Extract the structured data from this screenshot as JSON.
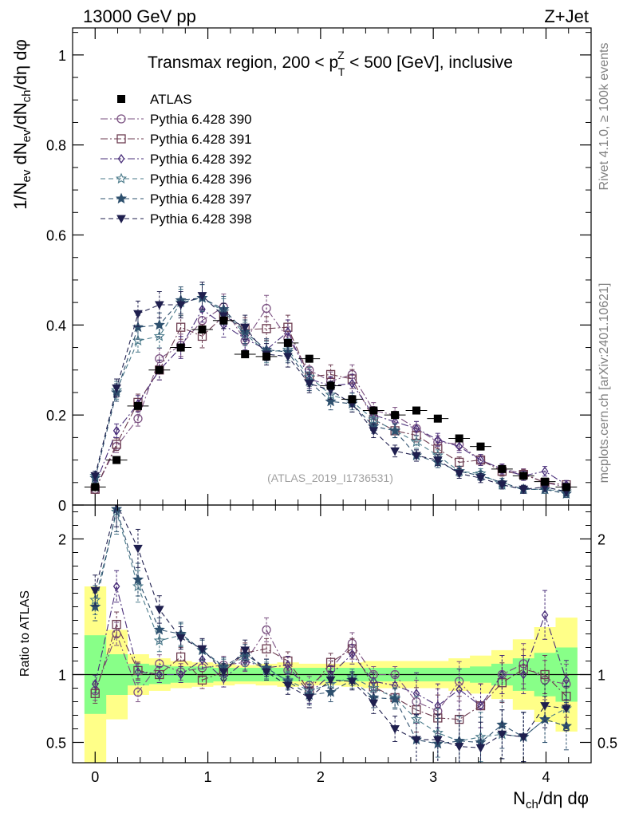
{
  "header": {
    "left": "13000 GeV pp",
    "right": "Z+Jet"
  },
  "side_text": {
    "rivet": "Rivet 4.1.0, ≥ 100k events",
    "mcplots": "mcplots.cern.ch [arXiv:2401.10621]"
  },
  "chart_data": [
    {
      "type": "scatter",
      "panel": "main",
      "title": "Transmax region, 200 < p_T^Z < 500 [GeV], inclusive",
      "title_parts": {
        "pre": "Transmax region, 200 < p",
        "sup": "Z",
        "sub": "T",
        "post": " < 500 [GeV], inclusive"
      },
      "analysis_label": "(ATLAS_2019_I1736531)",
      "ylabel": "1/N_ev dN_ev/dN_ch/dη dφ",
      "xlabel": "N_ch/dη dφ",
      "xlim": [
        -0.2,
        4.4
      ],
      "ylim": [
        0,
        1.06
      ],
      "yticks": [
        0,
        0.2,
        0.4,
        0.6,
        0.8,
        1
      ],
      "ytick_labels": [
        "0",
        "0.2",
        "0.4",
        "0.6",
        "0.8",
        "1"
      ],
      "x": [
        0.0,
        0.19,
        0.38,
        0.57,
        0.76,
        0.95,
        1.14,
        1.33,
        1.52,
        1.71,
        1.9,
        2.09,
        2.28,
        2.47,
        2.66,
        2.85,
        3.04,
        3.23,
        3.42,
        3.61,
        3.8,
        3.99,
        4.18
      ],
      "data": {
        "name": "ATLAS",
        "values": [
          0.04,
          0.1,
          0.22,
          0.3,
          0.35,
          0.39,
          0.41,
          0.335,
          0.33,
          0.36,
          0.325,
          0.265,
          0.235,
          0.21,
          0.2,
          0.21,
          0.192,
          0.148,
          0.13,
          0.08,
          0.065,
          0.052,
          0.04
        ]
      },
      "series": [
        {
          "name": "Pythia 6.428 390",
          "marker": "circle",
          "color": "#7a5080",
          "dash": "9,3,2,3",
          "values": [
            0.035,
            0.13,
            0.192,
            0.325,
            0.355,
            0.41,
            0.44,
            0.365,
            0.437,
            0.37,
            0.3,
            0.275,
            0.29,
            0.21,
            0.2,
            0.17,
            0.14,
            0.135,
            0.1,
            0.08,
            0.07,
            0.05,
            0.04
          ]
        },
        {
          "name": "Pythia 6.428 391",
          "marker": "square",
          "color": "#6c3c50",
          "dash": "9,3,2,3",
          "values": [
            0.035,
            0.135,
            0.228,
            0.3,
            0.395,
            0.375,
            0.42,
            0.39,
            0.392,
            0.395,
            0.285,
            0.29,
            0.28,
            0.19,
            0.165,
            0.155,
            0.125,
            0.095,
            0.1,
            0.075,
            0.068,
            0.05,
            0.045
          ]
        },
        {
          "name": "Pythia 6.428 392",
          "marker": "diamond",
          "color": "#4a2f7a",
          "dash": "9,3,2,3",
          "values": [
            0.045,
            0.165,
            0.225,
            0.3,
            0.35,
            0.435,
            0.4,
            0.37,
            0.345,
            0.385,
            0.28,
            0.265,
            0.27,
            0.2,
            0.185,
            0.17,
            0.145,
            0.13,
            0.1,
            0.08,
            0.065,
            0.075,
            0.045
          ]
        },
        {
          "name": "Pythia 6.428 396",
          "marker": "star",
          "color": "#4a7a8a",
          "dash": "6,4",
          "values": [
            0.065,
            0.255,
            0.365,
            0.375,
            0.45,
            0.46,
            0.43,
            0.38,
            0.34,
            0.345,
            0.285,
            0.245,
            0.23,
            0.19,
            0.165,
            0.14,
            0.11,
            0.075,
            0.07,
            0.045,
            0.035,
            0.035,
            0.03
          ]
        },
        {
          "name": "Pythia 6.428 397",
          "marker": "star",
          "color": "#2e506e",
          "dash": "6,4",
          "values": [
            0.06,
            0.25,
            0.395,
            0.4,
            0.455,
            0.46,
            0.435,
            0.385,
            0.345,
            0.34,
            0.275,
            0.23,
            0.225,
            0.175,
            0.165,
            0.11,
            0.095,
            0.075,
            0.065,
            0.05,
            0.035,
            0.035,
            0.025
          ]
        },
        {
          "name": "Pythia 6.428 398",
          "marker": "triangle-down",
          "color": "#1f1f4e",
          "dash": "6,4",
          "values": [
            0.065,
            0.26,
            0.425,
            0.445,
            0.445,
            0.465,
            0.42,
            0.395,
            0.335,
            0.33,
            0.27,
            0.255,
            0.225,
            0.165,
            0.12,
            0.11,
            0.1,
            0.07,
            0.06,
            0.045,
            0.035,
            0.04,
            0.03
          ]
        }
      ]
    },
    {
      "type": "scatter",
      "panel": "ratio",
      "ylabel": "Ratio to ATLAS",
      "xlim": [
        -0.2,
        4.4
      ],
      "ylim": [
        0.35,
        2.25
      ],
      "yticks": [
        0.5,
        1,
        2
      ],
      "ytick_labels": [
        "0.5",
        "1",
        "2"
      ],
      "xticks": [
        0,
        1,
        2,
        3,
        4
      ],
      "xtick_labels": [
        "0",
        "1",
        "2",
        "3",
        "4"
      ],
      "band_green_halfwidth": [
        0.29,
        0.15,
        0.08,
        0.07,
        0.06,
        0.06,
        0.05,
        0.05,
        0.05,
        0.05,
        0.05,
        0.05,
        0.05,
        0.05,
        0.05,
        0.05,
        0.05,
        0.05,
        0.06,
        0.08,
        0.12,
        0.16,
        0.2
      ],
      "band_yellow_halfwidth": [
        0.65,
        0.33,
        0.15,
        0.12,
        0.1,
        0.09,
        0.08,
        0.07,
        0.08,
        0.09,
        0.08,
        0.08,
        0.09,
        0.1,
        0.1,
        0.1,
        0.1,
        0.12,
        0.14,
        0.18,
        0.26,
        0.35,
        0.42
      ],
      "series_ratio": [
        {
          "name": "Pythia 6.428 390",
          "values": [
            0.88,
            1.3,
            0.87,
            1.08,
            1.02,
            1.05,
            1.07,
            1.09,
            1.33,
            1.03,
            0.92,
            1.04,
            1.23,
            1.0,
            1.0,
            0.8,
            0.73,
            0.95,
            0.77,
            1.0,
            1.08,
            0.96,
            0.93
          ]
        },
        {
          "name": "Pythia 6.428 391",
          "values": [
            0.86,
            1.37,
            1.03,
            1.0,
            1.13,
            0.96,
            1.02,
            1.16,
            1.19,
            1.1,
            0.88,
            1.09,
            1.19,
            0.91,
            0.83,
            0.74,
            0.68,
            0.67,
            0.77,
            0.94,
            1.04,
            1.0,
            0.84
          ]
        },
        {
          "name": "Pythia 6.428 392",
          "values": [
            0.93,
            1.65,
            1.02,
            1.0,
            1.0,
            1.11,
            0.97,
            1.1,
            1.05,
            1.07,
            0.86,
            1.0,
            1.15,
            0.95,
            0.92,
            0.86,
            0.77,
            0.89,
            0.77,
            1.0,
            1.0,
            1.44,
            0.96
          ]
        },
        {
          "name": "Pythia 6.428 396",
          "values": [
            1.55,
            2.2,
            1.65,
            1.25,
            1.29,
            1.18,
            1.05,
            1.13,
            1.03,
            0.96,
            0.88,
            0.93,
            0.98,
            0.9,
            0.83,
            0.67,
            0.57,
            0.51,
            0.54,
            0.56,
            0.54,
            0.67,
            0.75
          ]
        },
        {
          "name": "Pythia 6.428 397",
          "values": [
            1.5,
            2.22,
            1.7,
            1.33,
            1.3,
            1.18,
            1.06,
            1.15,
            1.05,
            0.95,
            0.85,
            0.87,
            0.96,
            0.83,
            0.82,
            0.52,
            0.49,
            0.51,
            0.5,
            0.63,
            0.54,
            0.67,
            0.62
          ]
        },
        {
          "name": "Pythia 6.428 398",
          "values": [
            1.62,
            2.26,
            1.93,
            1.48,
            1.27,
            1.19,
            1.02,
            1.18,
            1.02,
            0.92,
            0.83,
            0.96,
            0.95,
            0.79,
            0.6,
            0.52,
            0.52,
            0.47,
            0.46,
            0.56,
            0.54,
            0.77,
            0.75
          ]
        }
      ]
    }
  ]
}
